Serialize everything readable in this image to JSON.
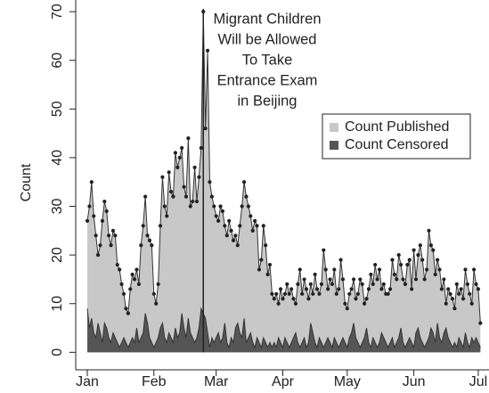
{
  "chart_data": {
    "type": "area",
    "y_label": "Count",
    "annotation": {
      "lines": [
        "Migrant Children",
        "Will be Allowed",
        "To Take",
        "Entrance Exam",
        "in Beijing"
      ],
      "x": 54
    },
    "legend": "topright",
    "xlim": [
      -5.4,
      187
    ],
    "xticks": [
      {
        "value": 0,
        "label": "Jan"
      },
      {
        "value": 31,
        "label": "Feb"
      },
      {
        "value": 60,
        "label": "Mar"
      },
      {
        "value": 91,
        "label": "Apr"
      },
      {
        "value": 121,
        "label": "May"
      },
      {
        "value": 152,
        "label": "Jun"
      },
      {
        "value": 182,
        "label": "Jul"
      }
    ],
    "ylim": [
      -3.6,
      72.4
    ],
    "yticks": [
      0,
      10,
      20,
      30,
      40,
      50,
      60,
      70
    ],
    "x": [
      0,
      1,
      2,
      3,
      4,
      5,
      6,
      7,
      8,
      9,
      10,
      11,
      12,
      13,
      14,
      15,
      16,
      17,
      18,
      19,
      20,
      21,
      22,
      23,
      24,
      25,
      26,
      27,
      28,
      29,
      30,
      31,
      32,
      33,
      34,
      35,
      36,
      37,
      38,
      39,
      40,
      41,
      42,
      43,
      44,
      45,
      46,
      47,
      48,
      49,
      50,
      51,
      52,
      53,
      54,
      55,
      56,
      57,
      58,
      59,
      60,
      61,
      62,
      63,
      64,
      65,
      66,
      67,
      68,
      69,
      70,
      71,
      72,
      73,
      74,
      75,
      76,
      77,
      78,
      79,
      80,
      81,
      82,
      83,
      84,
      85,
      86,
      87,
      88,
      89,
      90,
      91,
      92,
      93,
      94,
      95,
      96,
      97,
      98,
      99,
      100,
      101,
      102,
      103,
      104,
      105,
      106,
      107,
      108,
      109,
      110,
      111,
      112,
      113,
      114,
      115,
      116,
      117,
      118,
      119,
      120,
      121,
      122,
      123,
      124,
      125,
      126,
      127,
      128,
      129,
      130,
      131,
      132,
      133,
      134,
      135,
      136,
      137,
      138,
      139,
      140,
      141,
      142,
      143,
      144,
      145,
      146,
      147,
      148,
      149,
      150,
      151,
      152,
      153,
      154,
      155,
      156,
      157,
      158,
      159,
      160,
      161,
      162,
      163,
      164,
      165,
      166,
      167,
      168,
      169,
      170,
      171,
      172,
      173,
      174,
      175,
      176,
      177,
      178,
      179,
      180,
      181,
      182,
      183
    ],
    "series": [
      {
        "name": "Count Published",
        "color": "#c8c8c8",
        "values": [
          27,
          30,
          35,
          28,
          24,
          20,
          22,
          27,
          31,
          29,
          24,
          22,
          25,
          24,
          18,
          17,
          14,
          12,
          9,
          8,
          13,
          16,
          15,
          17,
          14,
          22,
          26,
          32,
          24,
          23,
          22,
          12,
          10,
          14,
          26,
          36,
          30,
          28,
          37,
          33,
          32,
          41,
          38,
          40,
          42,
          34,
          32,
          44,
          30,
          31,
          38,
          31,
          36,
          42,
          70,
          46,
          62,
          35,
          32,
          30,
          28,
          27,
          30,
          29,
          26,
          24,
          27,
          25,
          23,
          24,
          22,
          26,
          30,
          35,
          32,
          30,
          28,
          25,
          27,
          26,
          17,
          19,
          26,
          22,
          16,
          18,
          12,
          11,
          12,
          10,
          13,
          11,
          12,
          14,
          12,
          13,
          11,
          10,
          14,
          17,
          12,
          15,
          13,
          11,
          14,
          12,
          16,
          13,
          12,
          14,
          21,
          17,
          13,
          15,
          14,
          17,
          12,
          13,
          19,
          15,
          10,
          9,
          12,
          13,
          15,
          11,
          12,
          15,
          14,
          10,
          11,
          13,
          16,
          14,
          18,
          15,
          17,
          13,
          14,
          12,
          12,
          13,
          19,
          16,
          15,
          20,
          18,
          15,
          14,
          18,
          19,
          13,
          21,
          15,
          20,
          22,
          19,
          15,
          17,
          25,
          22,
          21,
          16,
          19,
          17,
          13,
          15,
          10,
          13,
          12,
          11,
          9,
          14,
          12,
          13,
          11,
          17,
          14,
          12,
          10,
          17,
          14,
          13,
          6
        ]
      },
      {
        "name": "Count Censored",
        "color": "#555555",
        "values": [
          9,
          5,
          7,
          4,
          3,
          6,
          4,
          2,
          6,
          5,
          3,
          2,
          4,
          3,
          2,
          1,
          2,
          3,
          2,
          1,
          2,
          3,
          2,
          5,
          2,
          3,
          4,
          8,
          6,
          3,
          2,
          1,
          2,
          3,
          5,
          6,
          3,
          2,
          4,
          3,
          2,
          5,
          3,
          4,
          8,
          5,
          3,
          7,
          4,
          3,
          2,
          3,
          5,
          9,
          8,
          7,
          4,
          1,
          3,
          2,
          3,
          4,
          2,
          3,
          6,
          2,
          1,
          3,
          2,
          5,
          6,
          4,
          3,
          7,
          2,
          3,
          4,
          2,
          1,
          3,
          2,
          1,
          3,
          2,
          1,
          2,
          1,
          2,
          1,
          3,
          2,
          1,
          3,
          2,
          1,
          2,
          3,
          4,
          2,
          1,
          2,
          3,
          1,
          2,
          6,
          4,
          2,
          1,
          3,
          2,
          1,
          2,
          3,
          2,
          1,
          3,
          2,
          1,
          2,
          3,
          2,
          1,
          3,
          4,
          6,
          3,
          2,
          1,
          2,
          3,
          5,
          2,
          1,
          3,
          2,
          1,
          2,
          4,
          3,
          2,
          1,
          2,
          3,
          1,
          2,
          3,
          5,
          2,
          1,
          2,
          3,
          2,
          1,
          4,
          5,
          3,
          2,
          1,
          2,
          3,
          5,
          4,
          2,
          6,
          3,
          2,
          4,
          5,
          3,
          2,
          1,
          2,
          1,
          3,
          2,
          1,
          4,
          2,
          1,
          3,
          2,
          3,
          2,
          1
        ]
      }
    ]
  }
}
